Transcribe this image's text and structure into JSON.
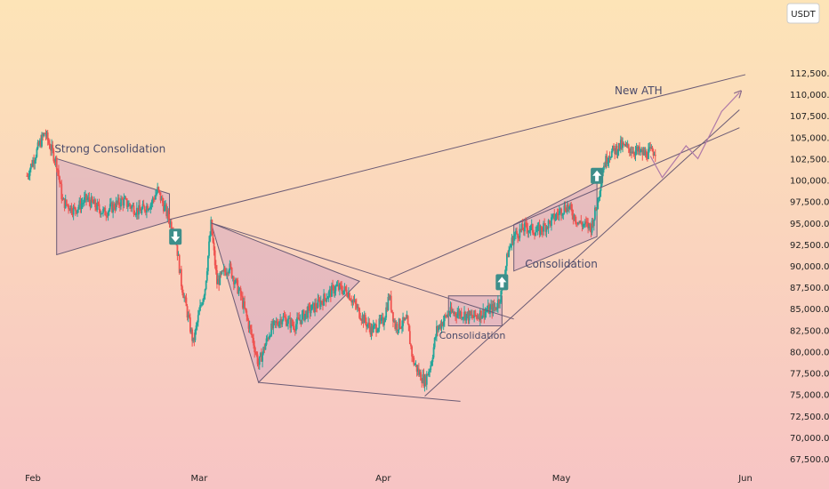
{
  "currency": "USDT",
  "colors": {
    "bg_top": "#fde4b7",
    "bg_bottom": "#f7c4c4",
    "up": "#26a69a",
    "down": "#ef5350",
    "line": "#6b5b75",
    "pattern_fill": "#d7a7bf",
    "arrow_box": "#3d8e8a"
  },
  "chart_data": {
    "type": "candlestick",
    "title": "",
    "xlabel": "",
    "ylabel": "",
    "ylim": [
      66250,
      113000
    ],
    "xlim": [
      "2025-01-31",
      "2025-06-01"
    ],
    "y_ticks": [
      "67,500.0",
      "70,000.0",
      "72,500.0",
      "75,000.0",
      "77,500.0",
      "80,000.0",
      "82,500.0",
      "85,000.0",
      "87,500.0",
      "90,000.0",
      "92,500.0",
      "95,000.0",
      "97,500.0",
      "100,000.0",
      "102,500.0",
      "105,000.0",
      "107,500.0",
      "110,000.0",
      "112,500.0"
    ],
    "x_ticks": [
      "Feb",
      "Mar",
      "Apr",
      "May",
      "Jun"
    ],
    "price_path": [
      [
        "2025-01-31",
        100500
      ],
      [
        "2025-02-02",
        104000
      ],
      [
        "2025-02-03",
        105500
      ],
      [
        "2025-02-05",
        102000
      ],
      [
        "2025-02-06",
        97500
      ],
      [
        "2025-02-08",
        96500
      ],
      [
        "2025-02-10",
        97800
      ],
      [
        "2025-02-13",
        96200
      ],
      [
        "2025-02-16",
        97600
      ],
      [
        "2025-02-19",
        96300
      ],
      [
        "2025-02-21",
        97400
      ],
      [
        "2025-02-22",
        98800
      ],
      [
        "2025-02-24",
        95300
      ],
      [
        "2025-02-25",
        93500
      ],
      [
        "2025-02-26",
        88000
      ],
      [
        "2025-02-27",
        84500
      ],
      [
        "2025-02-28",
        81000
      ],
      [
        "2025-03-01",
        84500
      ],
      [
        "2025-03-02",
        87500
      ],
      [
        "2025-03-03",
        94800
      ],
      [
        "2025-03-04",
        88000
      ],
      [
        "2025-03-06",
        90000
      ],
      [
        "2025-03-08",
        86500
      ],
      [
        "2025-03-10",
        81500
      ],
      [
        "2025-03-11",
        78500
      ],
      [
        "2025-03-13",
        82500
      ],
      [
        "2025-03-15",
        84000
      ],
      [
        "2025-03-17",
        83000
      ],
      [
        "2025-03-19",
        84500
      ],
      [
        "2025-03-21",
        85500
      ],
      [
        "2025-03-24",
        87500
      ],
      [
        "2025-03-26",
        87000
      ],
      [
        "2025-03-28",
        84500
      ],
      [
        "2025-03-30",
        82500
      ],
      [
        "2025-04-01",
        83500
      ],
      [
        "2025-04-02",
        86500
      ],
      [
        "2025-04-03",
        83000
      ],
      [
        "2025-04-05",
        83500
      ],
      [
        "2025-04-06",
        79000
      ],
      [
        "2025-04-07",
        77500
      ],
      [
        "2025-04-08",
        76500
      ],
      [
        "2025-04-09",
        78500
      ],
      [
        "2025-04-10",
        82500
      ],
      [
        "2025-04-12",
        84500
      ],
      [
        "2025-04-14",
        84500
      ],
      [
        "2025-04-16",
        84000
      ],
      [
        "2025-04-18",
        84600
      ],
      [
        "2025-04-20",
        85200
      ],
      [
        "2025-04-21",
        87000
      ],
      [
        "2025-04-22",
        91500
      ],
      [
        "2025-04-23",
        93500
      ],
      [
        "2025-04-25",
        94500
      ],
      [
        "2025-04-27",
        94000
      ],
      [
        "2025-04-29",
        95000
      ],
      [
        "2025-05-01",
        96500
      ],
      [
        "2025-05-02",
        97000
      ],
      [
        "2025-05-04",
        95000
      ],
      [
        "2025-05-06",
        94500
      ],
      [
        "2025-05-07",
        97000
      ],
      [
        "2025-05-08",
        101500
      ],
      [
        "2025-05-09",
        103000
      ],
      [
        "2025-05-11",
        104000
      ],
      [
        "2025-05-13",
        103500
      ],
      [
        "2025-05-15",
        103000
      ],
      [
        "2025-05-17",
        103500
      ]
    ],
    "annotations": [
      {
        "text": "Strong Consolidation"
      },
      {
        "text": "Consolidation"
      },
      {
        "text": "Consolidation"
      },
      {
        "text": "New ATH"
      }
    ]
  }
}
